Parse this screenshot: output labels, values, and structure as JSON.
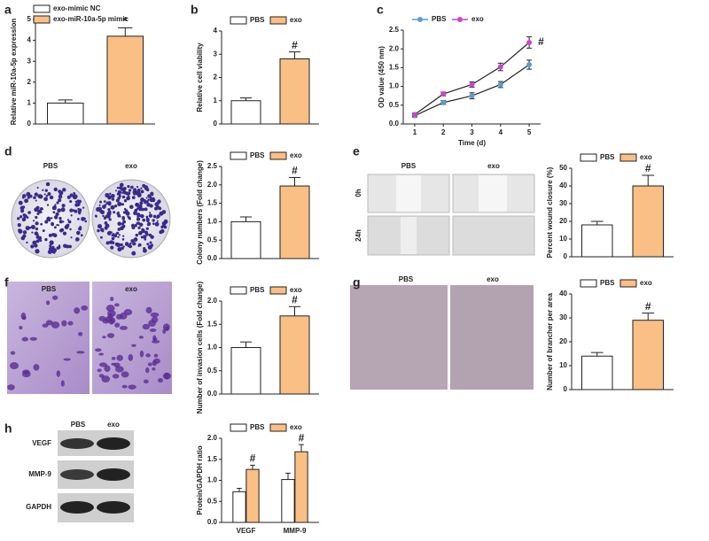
{
  "panel_labels": [
    "a",
    "b",
    "c",
    "d",
    "e",
    "f",
    "g",
    "h"
  ],
  "images": {
    "d": {
      "labels": [
        "PBS",
        "exo"
      ]
    },
    "e": {
      "labels": [
        "PBS",
        "exo"
      ],
      "rows": [
        "0h",
        "24h"
      ]
    },
    "f": {
      "labels": [
        "PBS",
        "exo"
      ]
    },
    "g": {
      "labels": [
        "PBS",
        "exo"
      ]
    },
    "h": {
      "labels": [
        "PBS",
        "exo"
      ],
      "rows": [
        "VEGF",
        "MMP-9",
        "GAPDH"
      ]
    }
  },
  "chart_data": [
    {
      "type": "bar",
      "ylabel": "Relative miR-10a-5p expression",
      "legend": "vertical",
      "ylim": [
        0,
        5
      ],
      "yticks": [
        0,
        1,
        2,
        3,
        4,
        5
      ],
      "series": [
        {
          "name": "exo-mimic NC",
          "color": "#ffffff",
          "values": [
            1.0
          ],
          "errors": [
            0.15
          ]
        },
        {
          "name": "exo-miR-10a-5p mimic",
          "color": "#f9bf85",
          "values": [
            4.2
          ],
          "errors": [
            0.4
          ],
          "annotations": [
            "*"
          ]
        }
      ]
    },
    {
      "type": "bar",
      "ylabel": "Relative cell viability",
      "legend": "horizontal",
      "ylim": [
        0,
        4
      ],
      "yticks": [
        0,
        1,
        2,
        3,
        4
      ],
      "series": [
        {
          "name": "PBS",
          "color": "#ffffff",
          "values": [
            1.0
          ],
          "errors": [
            0.12
          ]
        },
        {
          "name": "exo",
          "color": "#f9bf85",
          "values": [
            2.8
          ],
          "errors": [
            0.3
          ],
          "annotations": [
            "#"
          ]
        }
      ]
    },
    {
      "type": "line",
      "ylabel": "OD value (450 nm)",
      "xlabel": "Time (d)",
      "legend": "horizontal",
      "x": [
        1,
        2,
        3,
        4,
        5
      ],
      "xlim": [
        0.6,
        5.4
      ],
      "xticks": [
        1,
        2,
        3,
        4,
        5
      ],
      "ylim": [
        0,
        2.5
      ],
      "yticks": [
        {
          "value": 0,
          "label": "0.0"
        },
        0.5,
        {
          "value": 1,
          "label": "1.0"
        },
        1.5,
        {
          "value": 2,
          "label": "2.0"
        },
        2.5
      ],
      "series": [
        {
          "name": "PBS",
          "color": "#5b9bd5",
          "values": [
            0.22,
            0.57,
            0.75,
            1.05,
            1.58
          ],
          "errors": [
            0.04,
            0.05,
            0.08,
            0.08,
            0.12
          ]
        },
        {
          "name": "exo",
          "color": "#cc44cc",
          "values": [
            0.25,
            0.8,
            1.05,
            1.52,
            2.17
          ],
          "errors": [
            0.04,
            0.05,
            0.07,
            0.1,
            0.15
          ],
          "annotations": [
            null,
            null,
            null,
            null,
            "#"
          ]
        }
      ]
    },
    {
      "type": "bar",
      "ylabel": "Colony numbers (Fold change)",
      "legend": "horizontal",
      "ylim": [
        0,
        2.5
      ],
      "yticks": [
        {
          "value": 0,
          "label": "0.0"
        },
        0.5,
        {
          "value": 1,
          "label": "1.0"
        },
        1.5,
        {
          "value": 2,
          "label": "2.0"
        },
        2.5
      ],
      "series": [
        {
          "name": "PBS",
          "color": "#ffffff",
          "values": [
            1.0
          ],
          "errors": [
            0.13
          ]
        },
        {
          "name": "exo",
          "color": "#f9bf85",
          "values": [
            1.97
          ],
          "errors": [
            0.23
          ],
          "annotations": [
            "#"
          ]
        }
      ]
    },
    {
      "type": "bar",
      "ylabel": "Percent wound closure (%)",
      "legend": "horizontal",
      "ylim": [
        0,
        50
      ],
      "yticks": [
        0,
        10,
        20,
        30,
        40,
        50
      ],
      "series": [
        {
          "name": "PBS",
          "color": "#ffffff",
          "values": [
            18
          ],
          "errors": [
            2
          ]
        },
        {
          "name": "exo",
          "color": "#f9bf85",
          "values": [
            40
          ],
          "errors": [
            6
          ],
          "annotations": [
            "#"
          ]
        }
      ]
    },
    {
      "type": "bar",
      "ylabel": "Number of invasion cells (Fold change)",
      "legend": "horizontal",
      "ylim": [
        0,
        2
      ],
      "yticks": [
        {
          "value": 0,
          "label": "0.0"
        },
        0.5,
        {
          "value": 1,
          "label": "1.0"
        },
        1.5,
        {
          "value": 2,
          "label": "2.0"
        }
      ],
      "series": [
        {
          "name": "PBS",
          "color": "#ffffff",
          "values": [
            1.0
          ],
          "errors": [
            0.12
          ]
        },
        {
          "name": "exo",
          "color": "#f9bf85",
          "values": [
            1.68
          ],
          "errors": [
            0.2
          ],
          "annotations": [
            "#"
          ]
        }
      ]
    },
    {
      "type": "bar",
      "ylabel": "Number of brancher per area",
      "legend": "horizontal",
      "ylim": [
        0,
        40
      ],
      "yticks": [
        0,
        10,
        20,
        30,
        40
      ],
      "series": [
        {
          "name": "PBS",
          "color": "#ffffff",
          "values": [
            14
          ],
          "errors": [
            1.5
          ]
        },
        {
          "name": "exo",
          "color": "#f9bf85",
          "values": [
            29
          ],
          "errors": [
            3
          ],
          "annotations": [
            "#"
          ]
        }
      ]
    },
    {
      "type": "bar",
      "ylabel": "Protein/GAPDH ratio",
      "legend": "horizontal",
      "categories": [
        "VEGF",
        "MMP-9"
      ],
      "ylim": [
        0,
        2
      ],
      "yticks": [
        {
          "value": 0,
          "label": "0.0"
        },
        0.5,
        {
          "value": 1,
          "label": "1.0"
        },
        1.5,
        {
          "value": 2,
          "label": "2.0"
        }
      ],
      "series": [
        {
          "name": "PBS",
          "color": "#ffffff",
          "values": [
            0.73,
            1.02
          ],
          "errors": [
            0.08,
            0.15
          ]
        },
        {
          "name": "exo",
          "color": "#f9bf85",
          "values": [
            1.26,
            1.68
          ],
          "errors": [
            0.1,
            0.17
          ],
          "annotations": [
            "#",
            "#"
          ]
        }
      ]
    }
  ]
}
